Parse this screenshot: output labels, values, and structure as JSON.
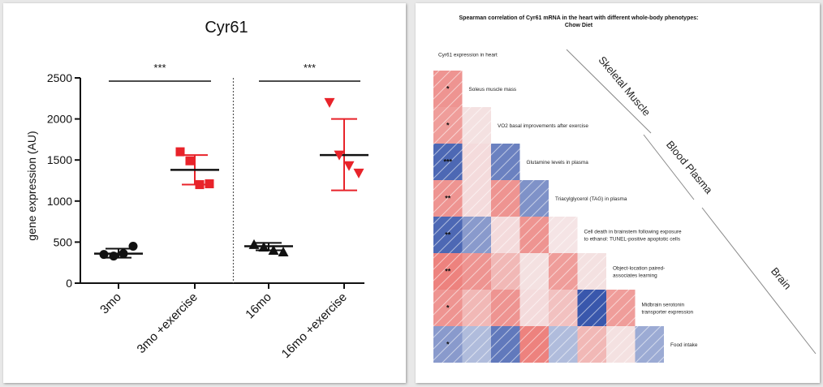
{
  "chart_data": [
    {
      "type": "scatter",
      "title": "Cyr61",
      "ylabel": "gene expression (AU)",
      "ylim": [
        0,
        2500
      ],
      "yticks": [
        0,
        500,
        1000,
        1500,
        2000,
        2500
      ],
      "categories": [
        "3mo",
        "3mo +exercise",
        "16mo",
        "16mo +exercise"
      ],
      "groups": [
        {
          "label": "3mo",
          "marker": "circle",
          "color": "#111111",
          "points": [
            350,
            330,
            360,
            450
          ],
          "mean": 360,
          "error": [
            310,
            420
          ]
        },
        {
          "label": "3mo +exercise",
          "marker": "square",
          "color": "#e8232a",
          "points": [
            1600,
            1490,
            1200,
            1210
          ],
          "mean": 1380,
          "error": [
            1200,
            1560
          ]
        },
        {
          "label": "16mo",
          "marker": "triangle-up",
          "color": "#111111",
          "points": [
            470,
            440,
            400,
            380
          ],
          "mean": 450,
          "error": [
            400,
            490
          ]
        },
        {
          "label": "16mo +exercise",
          "marker": "triangle-down",
          "color": "#e8232a",
          "points": [
            2200,
            1560,
            1430,
            1340
          ],
          "mean": 1560,
          "error": [
            1130,
            2000
          ]
        }
      ],
      "significance": [
        {
          "label": "***",
          "from": "3mo",
          "to": "3mo +exercise"
        },
        {
          "label": "***",
          "from": "16mo",
          "to": "16mo +exercise"
        }
      ],
      "divider_after": "3mo +exercise"
    },
    {
      "type": "heatmap",
      "title_line1": "Spearman correlation of Cyr61 mRNA in the heart with different whole-body phenotypes:",
      "title_line2": "Chow Diet",
      "variables": [
        "Cyr61 expression in heart",
        "Soleus muscle mass",
        "VO2 basal improvements after exercise",
        "Glutamine levels in plasma",
        "Triacylglycerol (TAG) in plasma",
        "Cell death in brainstem following exposure to ethanol: TUNEL-positive apoptotic cells",
        "Object-location paired-associates learning",
        "Midbrain serotonin transporter expression",
        "Food intake"
      ],
      "label_lines": [
        [
          "Cyr61 expression in heart"
        ],
        [
          "Soleus muscle mass"
        ],
        [
          "VO2 basal improvements after exercise"
        ],
        [
          "Glutamine levels in plasma"
        ],
        [
          "Triacylglycerol (TAG) in plasma"
        ],
        [
          "Cell death in brainstem following exposure",
          "to ethanol: TUNEL-positive apoptotic cells"
        ],
        [
          "Object-location paired-",
          "associates learning"
        ],
        [
          "Midbrain serotonin",
          "transporter expression"
        ],
        [
          "Food intake"
        ]
      ],
      "correlation_rows": [
        [
          0.55
        ],
        [
          0.5,
          0.12
        ],
        [
          -0.85,
          0.15,
          -0.7
        ],
        [
          0.55,
          0.15,
          0.55,
          -0.6
        ],
        [
          -0.85,
          -0.55,
          0.15,
          0.55,
          0.1
        ],
        [
          0.65,
          0.55,
          0.35,
          0.12,
          0.5,
          0.12
        ],
        [
          0.55,
          0.35,
          0.55,
          0.15,
          0.3,
          -0.95,
          0.5
        ],
        [
          -0.55,
          -0.35,
          -0.75,
          0.65,
          -0.35,
          0.35,
          0.12,
          -0.45
        ]
      ],
      "significance_first_column": [
        "*",
        "*",
        "***",
        "**",
        "**",
        "**",
        "*",
        "*"
      ],
      "colors": {
        "positive": "#e8443c",
        "negative": "#2f4fa8",
        "neutral": "#f6f6f8"
      },
      "groups": [
        "Skeletal Muscle",
        "Blood Plasma",
        "Brain"
      ]
    }
  ]
}
